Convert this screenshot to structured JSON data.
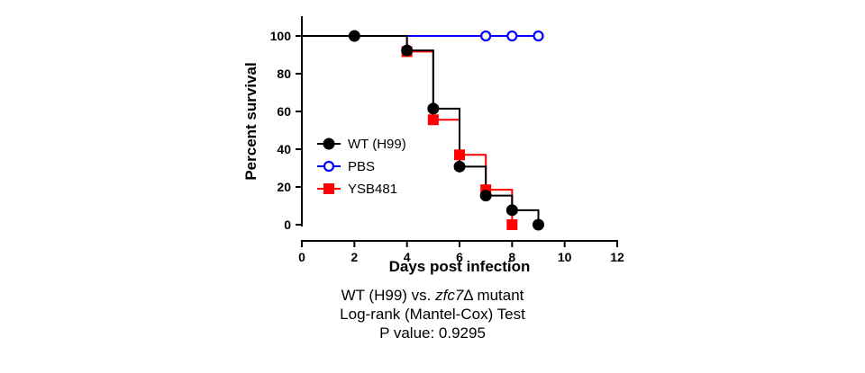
{
  "chart_data": {
    "type": "line",
    "step": true,
    "xlabel": "Days post infection",
    "ylabel": "Percent survival",
    "xlim": [
      0,
      12
    ],
    "ylim": [
      0,
      100
    ],
    "xticks": [
      "0",
      "2",
      "4",
      "6",
      "8",
      "10",
      "12"
    ],
    "yticks": [
      "0",
      "20",
      "40",
      "60",
      "80",
      "100"
    ],
    "grid": false,
    "legend_position": "center-left",
    "series": [
      {
        "name": "WT (H99)",
        "color": "#000000",
        "marker": "filled-circle",
        "steps": [
          [
            0,
            100
          ],
          [
            4,
            92.3
          ],
          [
            5,
            61.5
          ],
          [
            6,
            30.8
          ],
          [
            7,
            15.4
          ],
          [
            8,
            7.7
          ],
          [
            9,
            0
          ]
        ],
        "points": [
          [
            2,
            100
          ],
          [
            4,
            92.3
          ],
          [
            5,
            61.5
          ],
          [
            6,
            30.8
          ],
          [
            7,
            15.4
          ],
          [
            8,
            7.7
          ],
          [
            9,
            0
          ]
        ]
      },
      {
        "name": "PBS",
        "color": "#0000ff",
        "marker": "open-circle",
        "steps": [
          [
            0,
            100
          ],
          [
            9,
            100
          ]
        ],
        "points": [
          [
            7,
            100
          ],
          [
            8,
            100
          ],
          [
            9,
            100
          ]
        ]
      },
      {
        "name": "YSB481",
        "color": "#ff0000",
        "marker": "filled-square",
        "steps": [
          [
            0,
            100
          ],
          [
            4,
            91.7
          ],
          [
            5,
            55.6
          ],
          [
            6,
            37
          ],
          [
            7,
            18.5
          ],
          [
            8,
            0
          ]
        ],
        "points": [
          [
            4,
            91.7
          ],
          [
            5,
            55.6
          ],
          [
            6,
            37
          ],
          [
            7,
            18.5
          ],
          [
            8,
            0
          ]
        ]
      }
    ]
  },
  "caption": {
    "line1_prefix": "WT (H99) vs. ",
    "line1_gene": "zfc7",
    "line1_suffix": "Δ mutant",
    "line2": "Log-rank (Mantel-Cox) Test",
    "line3": "P value: 0.9295"
  }
}
